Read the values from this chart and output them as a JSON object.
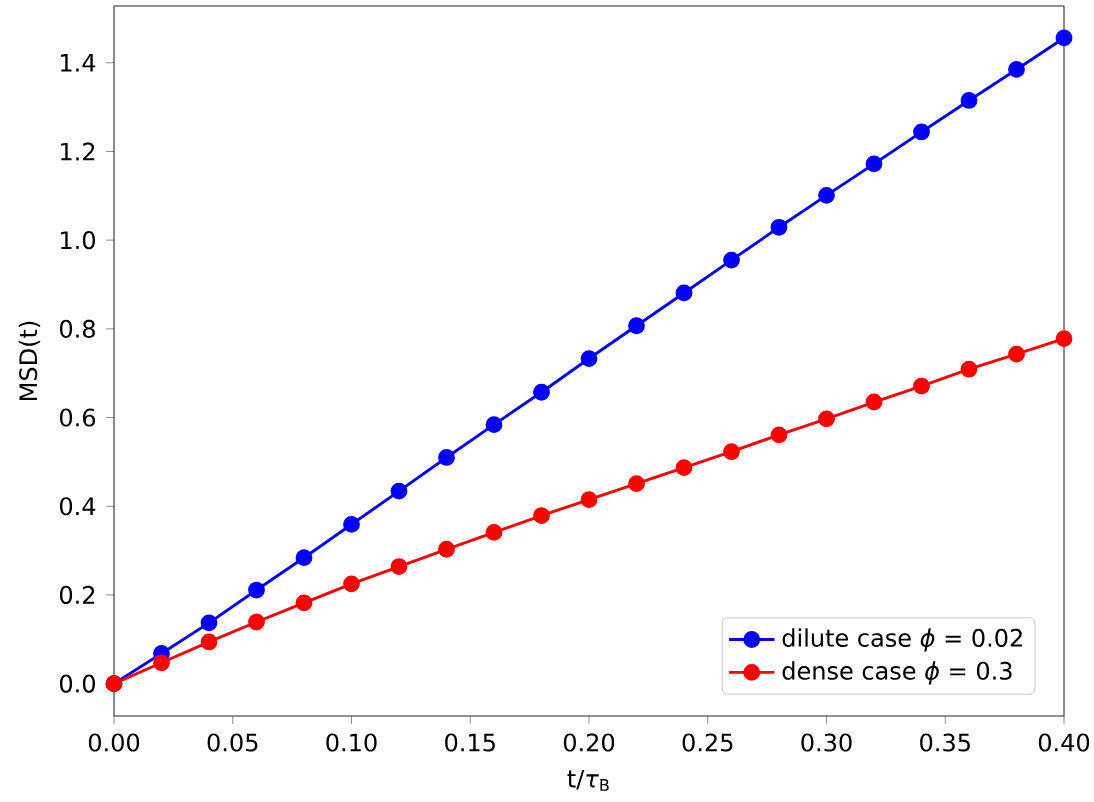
{
  "chart_data": {
    "type": "line",
    "xlabel": "t/*τ*$_{B}$",
    "ylabel": "MSD(t)",
    "x": [
      0.0,
      0.02,
      0.04,
      0.06,
      0.08,
      0.1,
      0.12,
      0.14,
      0.16,
      0.18,
      0.2,
      0.22,
      0.24,
      0.26,
      0.28,
      0.3,
      0.32,
      0.34,
      0.36,
      0.38,
      0.4
    ],
    "series": [
      {
        "name": "dilute case *ϕ* = 0.02",
        "color": "#0000ff",
        "values": [
          0.0,
          0.068,
          0.137,
          0.211,
          0.284,
          0.359,
          0.434,
          0.51,
          0.584,
          0.657,
          0.733,
          0.807,
          0.881,
          0.955,
          1.029,
          1.101,
          1.172,
          1.244,
          1.315,
          1.385,
          1.456
        ]
      },
      {
        "name": "dense case *ϕ* = 0.3",
        "color": "#ff0000",
        "values": [
          0.0,
          0.047,
          0.094,
          0.139,
          0.182,
          0.225,
          0.264,
          0.303,
          0.341,
          0.379,
          0.415,
          0.451,
          0.487,
          0.523,
          0.561,
          0.597,
          0.635,
          0.671,
          0.709,
          0.743,
          0.778
        ]
      }
    ],
    "xlim": [
      0.0,
      0.4
    ],
    "ylim": [
      -0.073,
      1.528
    ],
    "xticks": [
      {
        "value": 0.0,
        "label": "0.00"
      },
      {
        "value": 0.05,
        "label": "0.05"
      },
      {
        "value": 0.1,
        "label": "0.10"
      },
      {
        "value": 0.15,
        "label": "0.15"
      },
      {
        "value": 0.2,
        "label": "0.20"
      },
      {
        "value": 0.25,
        "label": "0.25"
      },
      {
        "value": 0.3,
        "label": "0.30"
      },
      {
        "value": 0.35,
        "label": "0.35"
      },
      {
        "value": 0.4,
        "label": "0.40"
      }
    ],
    "yticks": [
      {
        "value": 0.0,
        "label": "0.0"
      },
      {
        "value": 0.2,
        "label": "0.2"
      },
      {
        "value": 0.4,
        "label": "0.4"
      },
      {
        "value": 0.6,
        "label": "0.6"
      },
      {
        "value": 0.8,
        "label": "0.8"
      },
      {
        "value": 1.0,
        "label": "1.0"
      },
      {
        "value": 1.2,
        "label": "1.2"
      },
      {
        "value": 1.4,
        "label": "1.4"
      }
    ],
    "legend": "bottom right",
    "marker": "circle",
    "line_style": "solid",
    "grid": false
  }
}
